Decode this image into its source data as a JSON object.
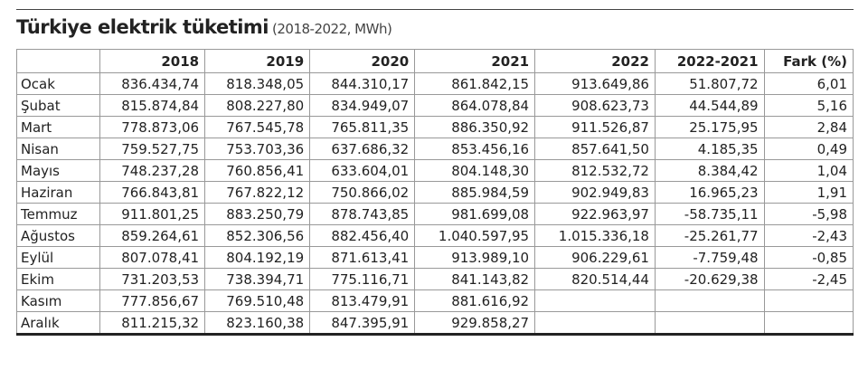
{
  "header": {
    "title": "Türkiye elektrik tüketimi",
    "subtitle": "(2018-2022, MWh)"
  },
  "table": {
    "columns": [
      "2018",
      "2019",
      "2020",
      "2021",
      "2022",
      "2022-2021",
      "Fark (%)"
    ],
    "rows": [
      [
        "Ocak",
        "836.434,74",
        "818.348,05",
        "844.310,17",
        "861.842,15",
        "913.649,86",
        "51.807,72",
        "6,01"
      ],
      [
        "Şubat",
        "815.874,84",
        "808.227,80",
        "834.949,07",
        "864.078,84",
        "908.623,73",
        "44.544,89",
        "5,16"
      ],
      [
        "Mart",
        "778.873,06",
        "767.545,78",
        "765.811,35",
        "886.350,92",
        "911.526,87",
        "25.175,95",
        "2,84"
      ],
      [
        "Nisan",
        "759.527,75",
        "753.703,36",
        "637.686,32",
        "853.456,16",
        "857.641,50",
        "4.185,35",
        "0,49"
      ],
      [
        "Mayıs",
        "748.237,28",
        "760.856,41",
        "633.604,01",
        "804.148,30",
        "812.532,72",
        "8.384,42",
        "1,04"
      ],
      [
        "Haziran",
        "766.843,81",
        "767.822,12",
        "750.866,02",
        "885.984,59",
        "902.949,83",
        "16.965,23",
        "1,91"
      ],
      [
        "Temmuz",
        "911.801,25",
        "883.250,79",
        "878.743,85",
        "981.699,08",
        "922.963,97",
        "-58.735,11",
        "-5,98"
      ],
      [
        "Ağustos",
        "859.264,61",
        "852.306,56",
        "882.456,40",
        "1.040.597,95",
        "1.015.336,18",
        "-25.261,77",
        "-2,43"
      ],
      [
        "Eylül",
        "807.078,41",
        "804.192,19",
        "871.613,41",
        "913.989,10",
        "906.229,61",
        "-7.759,48",
        "-0,85"
      ],
      [
        "Ekim",
        "731.203,53",
        "738.394,71",
        "775.116,71",
        "841.143,82",
        "820.514,44",
        "-20.629,38",
        "-2,45"
      ],
      [
        "Kasım",
        "777.856,67",
        "769.510,48",
        "813.479,91",
        "881.616,92"
      ],
      [
        "Aralık",
        "811.215,32",
        "823.160,38",
        "847.395,91",
        "929.858,27"
      ]
    ]
  }
}
